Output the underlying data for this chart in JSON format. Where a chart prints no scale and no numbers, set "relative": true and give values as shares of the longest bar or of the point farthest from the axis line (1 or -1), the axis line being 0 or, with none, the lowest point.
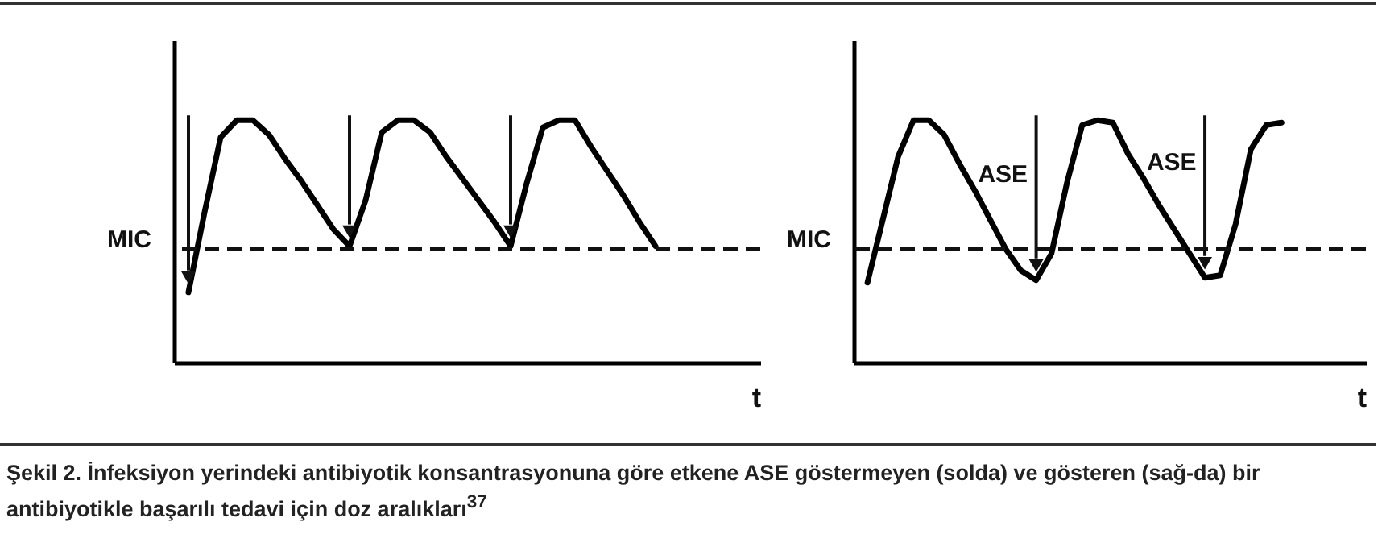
{
  "chart_data": [
    {
      "type": "line",
      "relative": true,
      "xlabel": "t",
      "categories": [
        null,
        null,
        null,
        null,
        null,
        null,
        null,
        null,
        null,
        null,
        null,
        null,
        null,
        null,
        null,
        null,
        null,
        null,
        null,
        null,
        null,
        null,
        null,
        null,
        null,
        null,
        null,
        null,
        null,
        null,
        null,
        null,
        null,
        null,
        null,
        null
      ],
      "series": [
        {
          "color": "#000000",
          "values": [
            0.29,
            0.62,
            0.93,
            1.0,
            1.0,
            0.94,
            0.84,
            0.75,
            0.65,
            0.55,
            0.48,
            0.67,
            0.95,
            1.0,
            1.0,
            0.95,
            0.85,
            0.76,
            0.67,
            0.58,
            0.48,
            0.74,
            0.97,
            1.0,
            1.0,
            0.89,
            0.79,
            0.69,
            0.58,
            0.48,
            null,
            null,
            null,
            null,
            null,
            null
          ]
        }
      ],
      "line_style": "solid",
      "ref_lines": [
        {
          "axis": "y",
          "value": 0.47,
          "label": "MIC",
          "line_style": "dashed"
        }
      ]
    },
    {
      "type": "line",
      "relative": true,
      "xlabel": "t",
      "categories": [
        null,
        null,
        null,
        null,
        null,
        null,
        null,
        null,
        null,
        null,
        null,
        null,
        null,
        null,
        null,
        null,
        null,
        null,
        null,
        null,
        null,
        null,
        null,
        null,
        null,
        null,
        null,
        null,
        null,
        null,
        null,
        null,
        null
      ],
      "series": [
        {
          "color": "#000000",
          "values": [
            0.33,
            0.59,
            0.85,
            1.0,
            1.0,
            0.94,
            0.82,
            0.71,
            0.59,
            0.47,
            0.38,
            0.34,
            0.45,
            0.74,
            0.98,
            1.0,
            0.99,
            0.86,
            0.76,
            0.65,
            0.55,
            0.45,
            0.35,
            0.36,
            0.57,
            0.88,
            0.98,
            0.99,
            null,
            null,
            null,
            null,
            null
          ]
        }
      ],
      "line_style": "solid",
      "ref_lines": [
        {
          "axis": "y",
          "value": 0.47,
          "label": "MIC",
          "line_style": "dashed"
        }
      ],
      "annotations": [
        "ASE",
        "ASE",
        "Şekil 2. İnfeksiyon yerindeki antibiyotik konsantrasyonuna göre etkene ASE göstermeyen (solda) ve gösteren (sağ-da) bir antibiyotikle başarılı tedavi için doz aralıkları$^{37}$"
      ]
    }
  ]
}
